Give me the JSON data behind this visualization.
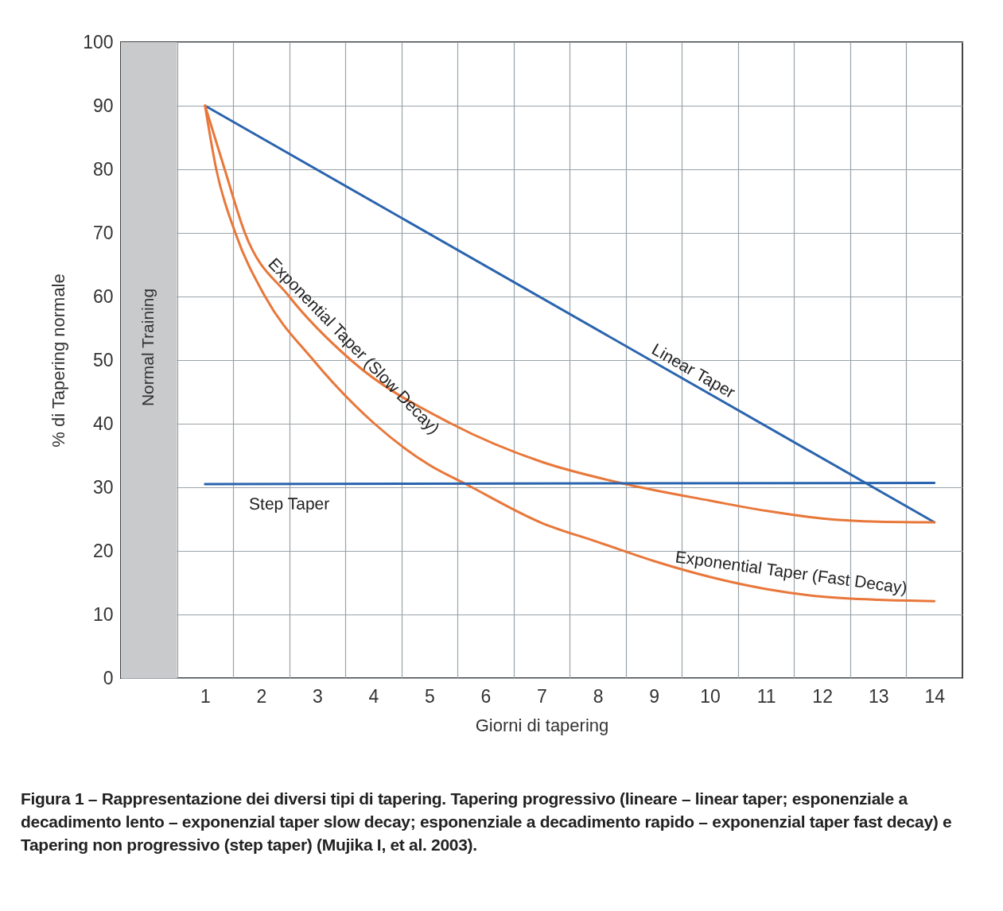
{
  "chart_data": {
    "type": "line",
    "xlabel": "Giorni di tapering",
    "ylabel": "% di Tapering normale",
    "xlim": [
      -0.5,
      14.5
    ],
    "xticks": [
      {
        "value": 0.5,
        "label": null
      },
      1,
      {
        "value": 1.5,
        "label": null
      },
      2,
      {
        "value": 2.5,
        "label": null
      },
      3,
      {
        "value": 3.5,
        "label": null
      },
      4,
      {
        "value": 4.5,
        "label": null
      },
      5,
      {
        "value": 5.5,
        "label": null
      },
      6,
      {
        "value": 6.5,
        "label": null
      },
      7,
      {
        "value": 7.5,
        "label": null
      },
      8,
      {
        "value": 8.5,
        "label": null
      },
      9,
      {
        "value": 9.5,
        "label": null
      },
      10,
      {
        "value": 10.5,
        "label": null
      },
      11,
      {
        "value": 11.5,
        "label": null
      },
      12,
      {
        "value": 12.5,
        "label": null
      },
      13,
      {
        "value": 13.5,
        "label": null
      },
      14
    ],
    "ylim": [
      0,
      100
    ],
    "yticks": [
      0,
      10,
      20,
      30,
      40,
      50,
      60,
      70,
      80,
      90,
      100
    ],
    "grid": true,
    "series": [
      {
        "name": "Linear Taper",
        "color": "#2a64ae",
        "x": [
          1,
          14
        ],
        "values": [
          90,
          24.5
        ]
      },
      {
        "name": "Exponential Taper (Slow Decay)",
        "color": "#e8773a",
        "x": [
          1,
          1.35,
          1.71,
          2.5,
          3.6,
          5.39,
          7,
          8.5,
          10,
          11,
          12,
          13,
          14
        ],
        "values": [
          90,
          80,
          70,
          60,
          50,
          40,
          34,
          30.5,
          27.9,
          26.3,
          25.1,
          24.6,
          24.5
        ]
      },
      {
        "name": "Exponential Taper (Fast Decay)",
        "color": "#e8773a",
        "x": [
          1,
          1.2,
          1.54,
          2.07,
          2.93,
          4.02,
          5,
          5.65,
          7,
          8,
          9,
          10,
          11,
          12,
          13,
          14
        ],
        "values": [
          90,
          80,
          70,
          60,
          50,
          40,
          33.5,
          30.5,
          24.4,
          21.4,
          18.4,
          15.9,
          14,
          12.8,
          12.3,
          12.1
        ]
      },
      {
        "name": "Step Taper",
        "color": "#2a64ae",
        "x": [
          1,
          14
        ],
        "values": [
          30.5,
          30.7
        ]
      }
    ],
    "bands": [
      {
        "axis": "x",
        "from": -0.5,
        "to": 0.5,
        "label": "Normal Training",
        "color": "#c9cacb"
      }
    ],
    "annotations": [
      "Figura 1 – Rappresentazione dei diversi tipi di tapering. Tapering progressivo (lineare – linear taper; esponenziale a decadimento lento – exponenzial taper slow decay; esponenziale a decadimento rapido – exponenzial taper fast decay) e Tapering non progressivo (step taper) (Mujika I, et al. 2003)."
    ]
  }
}
